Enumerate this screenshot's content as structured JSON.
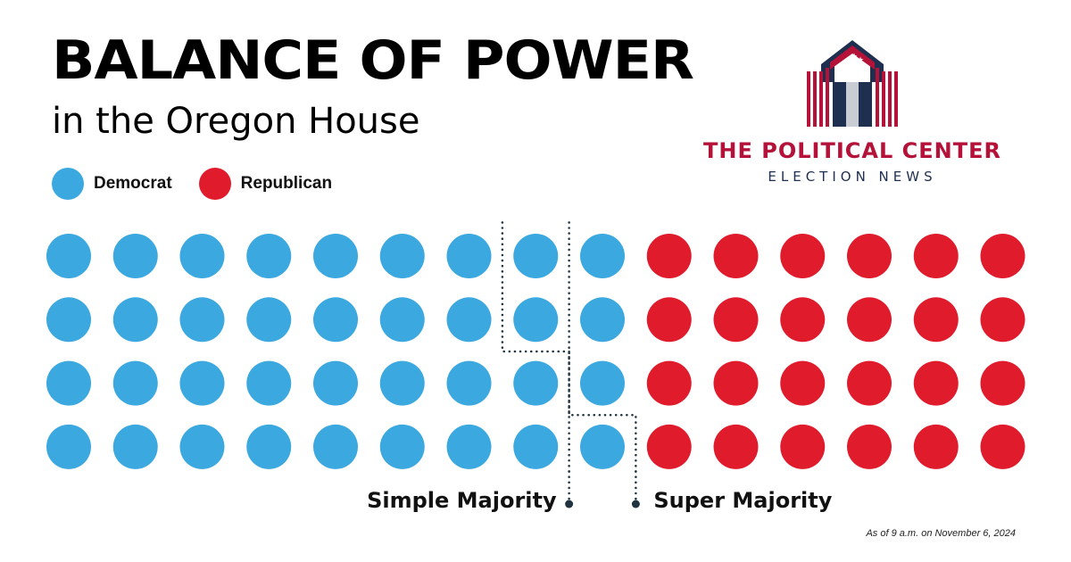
{
  "header": {
    "title": "BALANCE OF POWER",
    "subtitle": "in the Oregon House"
  },
  "legend": [
    {
      "label": "Democrat",
      "color": "#3ba8e0"
    },
    {
      "label": "Republican",
      "color": "#e01b2c"
    }
  ],
  "brand": {
    "name": "THE POLITICAL CENTER",
    "tagline": "ELECTION NEWS",
    "colors": {
      "red": "#b5123a",
      "navy": "#1f2f4f",
      "gray": "#c9ccd2"
    }
  },
  "chart_data": {
    "type": "waffle",
    "title": "BALANCE OF POWER",
    "subtitle": "in the Oregon House",
    "total_seats": 60,
    "grid": {
      "rows": 4,
      "columns": 15,
      "fill_order": "column-major"
    },
    "series": [
      {
        "name": "Democrat",
        "value": 36,
        "color": "#3ba8e0"
      },
      {
        "name": "Republican",
        "value": 24,
        "color": "#e01b2c"
      }
    ],
    "thresholds": [
      {
        "label": "Simple Majority",
        "seats": 31
      },
      {
        "label": "Super Majority",
        "seats": 36
      }
    ],
    "note": "As of 9 a.m. on November 6, 2024"
  }
}
